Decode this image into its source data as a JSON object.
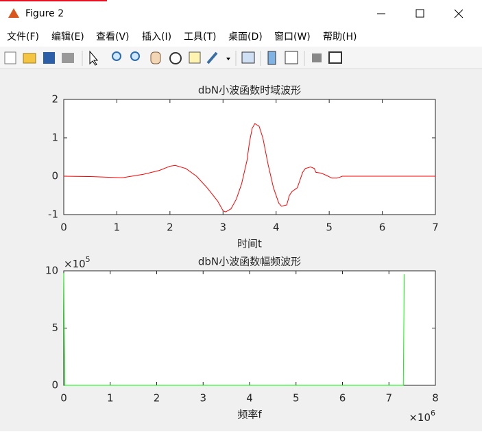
{
  "window": {
    "title": "Figure 2"
  },
  "menu": [
    "文件(F)",
    "编辑(E)",
    "查看(V)",
    "插入(I)",
    "工具(T)",
    "桌面(D)",
    "窗口(W)",
    "帮助(H)"
  ],
  "chart_data": [
    {
      "type": "line",
      "title": "dbN小波函数时域波形",
      "x_label": "时间t",
      "xlim": [
        0,
        7
      ],
      "ylim": [
        -1,
        2
      ],
      "xticks": [
        0,
        1,
        2,
        3,
        4,
        5,
        6,
        7
      ],
      "yticks": [
        -1,
        0,
        1,
        2
      ],
      "x": [
        0,
        0.5,
        1.1,
        1.5,
        1.8,
        2.0,
        2.1,
        2.3,
        2.5,
        2.7,
        2.9,
        3.0,
        3.05,
        3.15,
        3.25,
        3.35,
        3.45,
        3.5,
        3.55,
        3.6,
        3.68,
        3.75,
        3.85,
        3.95,
        4.05,
        4.1,
        4.2,
        4.25,
        4.3,
        4.4,
        4.5,
        4.55,
        4.65,
        4.72,
        4.75,
        4.85,
        4.95,
        5.05,
        5.15,
        5.25,
        5.4,
        7
      ],
      "series": [
        {
          "color": "#ff0000",
          "values": [
            0,
            -0.01,
            -0.04,
            0.05,
            0.15,
            0.26,
            0.28,
            0.2,
            0.0,
            -0.3,
            -0.65,
            -0.9,
            -0.93,
            -0.85,
            -0.6,
            -0.2,
            0.4,
            0.9,
            1.25,
            1.37,
            1.3,
            1.0,
            0.3,
            -0.3,
            -0.7,
            -0.78,
            -0.75,
            -0.5,
            -0.4,
            -0.3,
            0.1,
            0.2,
            0.24,
            0.2,
            0.1,
            0.08,
            0.02,
            -0.05,
            -0.05,
            0.0,
            0.0,
            0.0
          ]
        }
      ]
    },
    {
      "type": "line",
      "title": "dbN小波函数幅频波形",
      "x_label": "频率f",
      "x_exponent": {
        "base": "×10",
        "power": "6"
      },
      "y_exponent": {
        "base": "×10",
        "power": "5"
      },
      "xlim": [
        0,
        8000000
      ],
      "ylim": [
        0,
        1000000
      ],
      "xticks": [
        {
          "value": 0,
          "label": "0"
        },
        {
          "value": 1000000,
          "label": "1"
        },
        {
          "value": 2000000,
          "label": "2"
        },
        {
          "value": 3000000,
          "label": "3"
        },
        {
          "value": 4000000,
          "label": "4"
        },
        {
          "value": 5000000,
          "label": "5"
        },
        {
          "value": 6000000,
          "label": "6"
        },
        {
          "value": 7000000,
          "label": "7"
        },
        {
          "value": 8000000,
          "label": "8"
        }
      ],
      "yticks": [
        {
          "value": 0,
          "label": "0"
        },
        {
          "value": 500000,
          "label": "5"
        },
        {
          "value": 1000000,
          "label": "10"
        }
      ],
      "x": [
        0,
        20000,
        7310000,
        7330000
      ],
      "series": [
        {
          "color": "#00ff00",
          "values": [
            980000,
            0,
            0,
            970000
          ]
        }
      ]
    }
  ]
}
